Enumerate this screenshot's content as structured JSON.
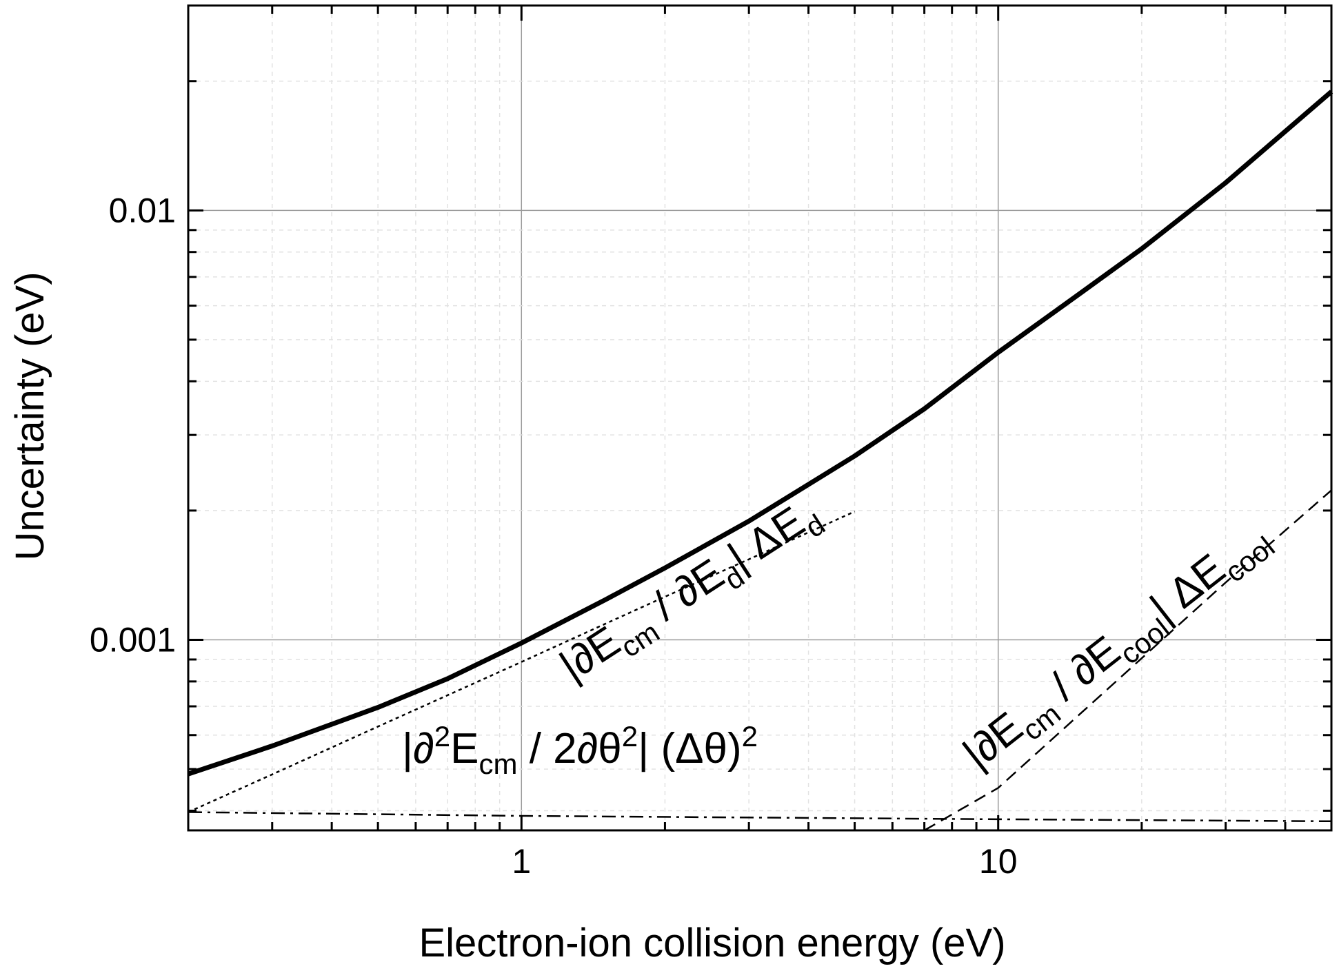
{
  "chart_data": {
    "type": "line",
    "xscale": "log",
    "yscale": "log",
    "xlim": [
      0.2,
      50
    ],
    "ylim": [
      0.00036,
      0.03
    ],
    "grid": true,
    "xlabel": "Electron-ion collision energy (eV)",
    "ylabel": "Uncertainty (eV)",
    "xticks": [
      {
        "value": 1,
        "label": "1"
      },
      {
        "value": 10,
        "label": "10"
      }
    ],
    "yticks": [
      {
        "value": 0.001,
        "label": "0.001"
      },
      {
        "value": 0.01,
        "label": "0.01"
      }
    ],
    "series": [
      {
        "id": "total",
        "style": "solid-thick",
        "x": [
          0.2,
          0.3,
          0.5,
          0.7,
          1,
          1.5,
          2,
          3,
          5,
          7,
          10,
          15,
          20,
          30,
          50
        ],
        "y": [
          0.000487,
          0.000566,
          0.000696,
          0.000812,
          0.000983,
          0.00124,
          0.00147,
          0.00189,
          0.00268,
          0.00345,
          0.00467,
          0.00646,
          0.00814,
          0.0116,
          0.0189
        ]
      },
      {
        "id": "dEd",
        "style": "dotted",
        "x": [
          0.2,
          0.3,
          0.5,
          0.7,
          1,
          1.5,
          2,
          3,
          5
        ],
        "y": [
          0.000397,
          0.000486,
          0.000628,
          0.000743,
          0.000888,
          0.00109,
          0.00126,
          0.00154,
          0.00199
        ]
      },
      {
        "id": "dEcool",
        "style": "dashed",
        "x": [
          7,
          10,
          20,
          30,
          50
        ],
        "y": [
          0.00036,
          0.000452,
          0.000906,
          0.00136,
          0.00223
        ]
      },
      {
        "id": "theta",
        "style": "dash-dot",
        "x": [
          0.2,
          1,
          10,
          50
        ],
        "y": [
          0.000397,
          0.000389,
          0.000382,
          0.000378
        ]
      }
    ],
    "annotations": [
      {
        "id": "dEd",
        "parts": [
          "|∂E",
          "cm",
          " / ∂E",
          "d",
          "| ΔE",
          "d"
        ]
      },
      {
        "id": "dEcool",
        "parts": [
          "|∂E",
          "cm",
          " / ∂E",
          "cool",
          "| ΔE",
          "cool"
        ]
      },
      {
        "id": "theta",
        "parts": [
          "|∂",
          "2",
          "E",
          "cm",
          " / 2∂θ",
          "2",
          "| (Δθ)",
          "2"
        ]
      }
    ]
  }
}
